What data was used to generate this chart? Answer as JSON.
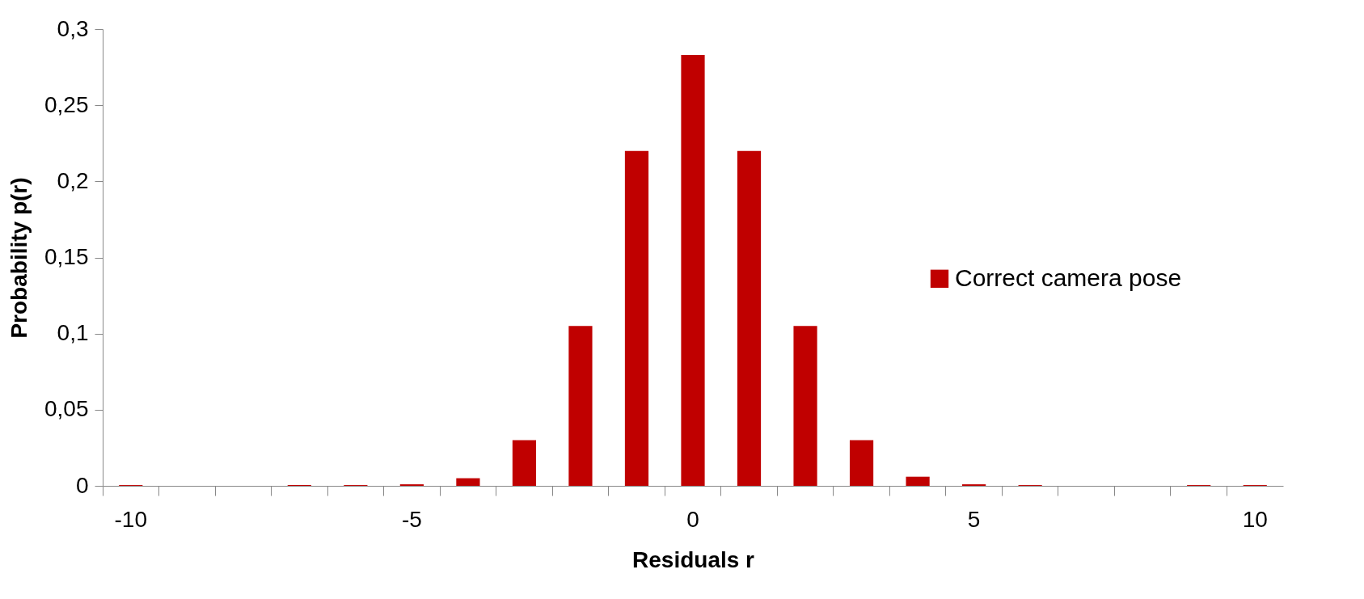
{
  "chart_data": {
    "type": "bar",
    "xlabel": "Residuals r",
    "ylabel": "Probability p(r)",
    "categories": [
      "-10",
      null,
      null,
      null,
      null,
      "-5",
      null,
      null,
      null,
      null,
      "0",
      null,
      null,
      null,
      null,
      "5",
      null,
      null,
      null,
      null,
      "10"
    ],
    "series": [
      {
        "name": "Correct camera pose",
        "color": "#c00000",
        "values": [
          0.0005,
          0,
          0,
          0.0005,
          0.0005,
          0.001,
          0.005,
          0.03,
          0.105,
          0.22,
          0.283,
          0.22,
          0.105,
          0.03,
          0.006,
          0.001,
          0.0005,
          0,
          0,
          0.0005,
          0.0005
        ]
      }
    ],
    "ylim": [
      0,
      0.3
    ],
    "yticks": [
      0,
      {
        "value": 0.05,
        "label": "0,05"
      },
      {
        "value": 0.1,
        "label": "0,1"
      },
      {
        "value": 0.15,
        "label": "0,15"
      },
      {
        "value": 0.2,
        "label": "0,2"
      },
      {
        "value": 0.25,
        "label": "0,25"
      },
      {
        "value": 0.3,
        "label": "0,3"
      }
    ],
    "legend": "right"
  }
}
